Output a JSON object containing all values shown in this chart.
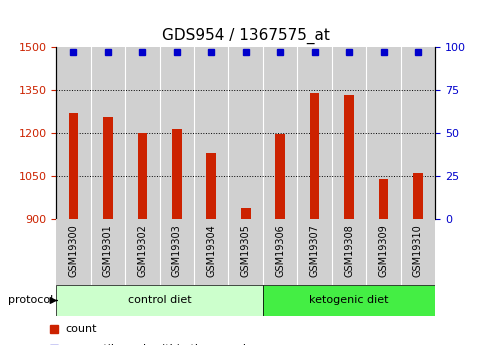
{
  "title": "GDS954 / 1367575_at",
  "samples": [
    "GSM19300",
    "GSM19301",
    "GSM19302",
    "GSM19303",
    "GSM19304",
    "GSM19305",
    "GSM19306",
    "GSM19307",
    "GSM19308",
    "GSM19309",
    "GSM19310"
  ],
  "bar_values": [
    1270,
    1255,
    1200,
    1215,
    1130,
    940,
    1197,
    1340,
    1330,
    1040,
    1060
  ],
  "percentile_values": [
    99,
    99,
    99,
    99,
    99,
    99,
    99,
    99,
    99,
    99,
    99
  ],
  "bar_color": "#cc2200",
  "percentile_color": "#0000cc",
  "ylim_left": [
    900,
    1500
  ],
  "ylim_right": [
    0,
    100
  ],
  "yticks_left": [
    900,
    1050,
    1200,
    1350,
    1500
  ],
  "yticks_right": [
    0,
    25,
    50,
    75,
    100
  ],
  "groups": [
    {
      "label": "control diet",
      "start": 0,
      "end": 5,
      "color": "#ccffcc"
    },
    {
      "label": "ketogenic diet",
      "start": 6,
      "end": 10,
      "color": "#44ee44"
    }
  ],
  "protocol_label": "protocol",
  "bg_color": "#ffffff",
  "bar_bg_color": "#d0d0d0",
  "title_fontsize": 11,
  "tick_fontsize": 8,
  "label_fontsize": 7
}
